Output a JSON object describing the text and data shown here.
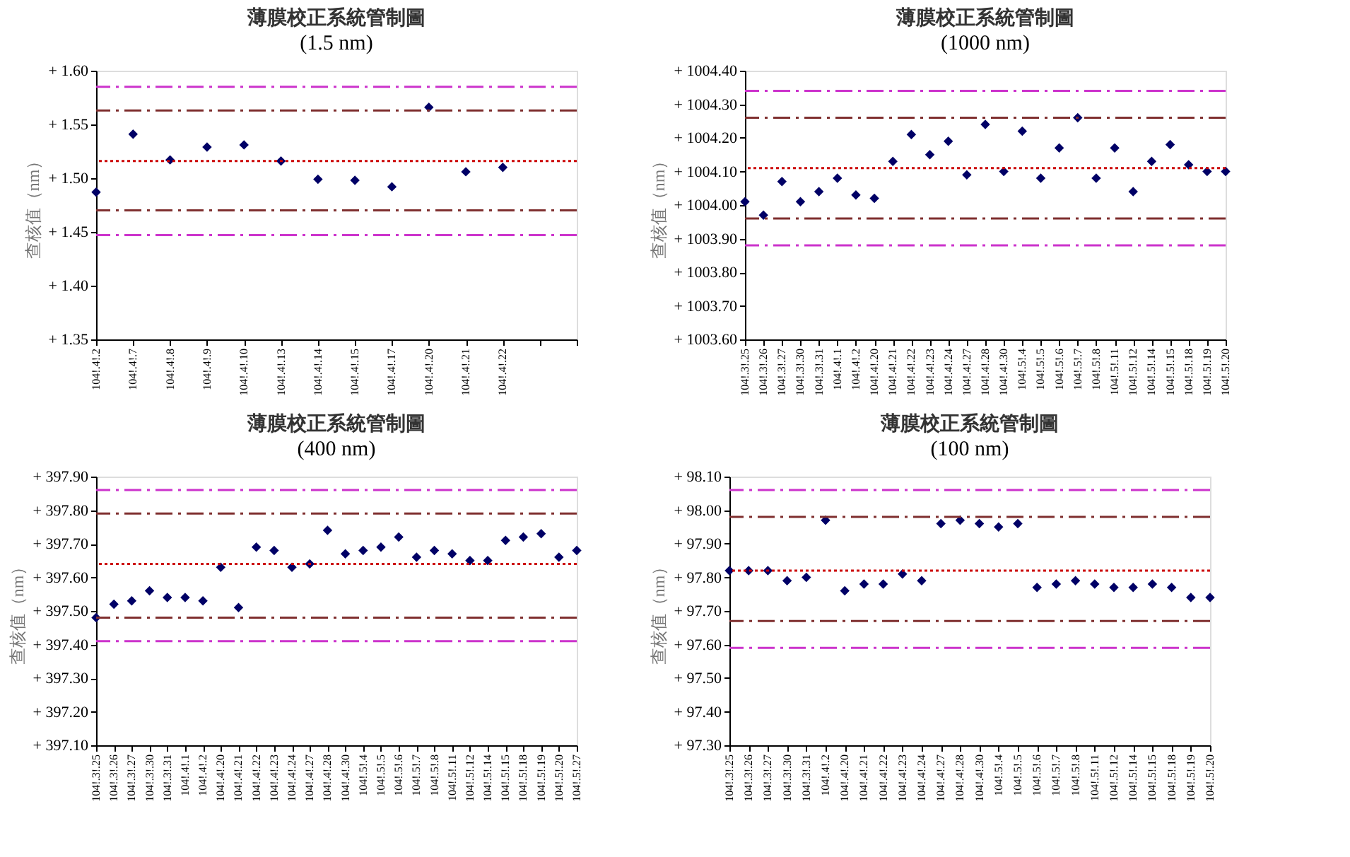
{
  "chart_data": [
    {
      "type": "scatter",
      "title": "薄膜校正系統管制圖",
      "subtitle": "(1.5 nm)",
      "ylabel": "查核值（nm）",
      "marker": "diamond",
      "grid": false,
      "categories": [
        "104!.4!.2",
        "104!.4!.7",
        "104!.4!.8",
        "104!.4!.9",
        "104!.4!.10",
        "104!.4!.13",
        "104!.4!.14",
        "104!.4!.15",
        "104!.4!.17",
        "104!.4!.20",
        "104!.4!.21",
        "104!.4!.22",
        null,
        null
      ],
      "series": [
        {
          "color": "#000066",
          "values": [
            1.487,
            1.541,
            1.517,
            1.529,
            1.531,
            1.516,
            1.499,
            1.498,
            1.492,
            1.566,
            1.506,
            1.51,
            null,
            null
          ]
        }
      ],
      "ylim": [
        1.35,
        1.6
      ],
      "yticks": [
        {
          "value": 1.35,
          "label": "+ 1.35"
        },
        {
          "value": 1.4,
          "label": "+ 1.40"
        },
        {
          "value": 1.45,
          "label": "+ 1.45"
        },
        {
          "value": 1.5,
          "label": "+ 1.50"
        },
        {
          "value": 1.55,
          "label": "+ 1.55"
        },
        {
          "value": 1.6,
          "label": "+ 1.60"
        }
      ],
      "ref_lines": [
        {
          "axis": "y",
          "value": 1.585,
          "color": "#cc33cc",
          "line_style": "dashed"
        },
        {
          "axis": "y",
          "value": 1.563,
          "color": "#7f2f2f",
          "line_style": "dashed"
        },
        {
          "axis": "y",
          "value": 1.516,
          "color": "#cc0000",
          "line_style": "dotted"
        },
        {
          "axis": "y",
          "value": 1.47,
          "color": "#7f2f2f",
          "line_style": "dashed"
        },
        {
          "axis": "y",
          "value": 1.447,
          "color": "#cc33cc",
          "line_style": "dashed"
        }
      ]
    },
    {
      "type": "scatter",
      "title": "薄膜校正系統管制圖",
      "subtitle": "(1000 nm)",
      "ylabel": "查核值（nm）",
      "marker": "diamond",
      "grid": false,
      "categories": [
        "104!.3!.25",
        "104!.3!.26",
        "104!.3!.27",
        "104!.3!.30",
        "104!.3!.31",
        "104!.4!.1",
        "104!.4!.2",
        "104!.4!.20",
        "104!.4!.21",
        "104!.4!.22",
        "104!.4!.23",
        "104!.4!.24",
        "104!.4!.27",
        "104!.4!.28",
        "104!.4!.30",
        "104!.5!.4",
        "104!.5!.5",
        "104!.5!.6",
        "104!.5!.7",
        "104!.5!.8",
        "104!.5!.11",
        "104!.5!.12",
        "104!.5!.14",
        "104!.5!.15",
        "104!.5!.18",
        "104!.5!.19",
        "104!.5!.20"
      ],
      "series": [
        {
          "color": "#000066",
          "values": [
            1004.01,
            1003.97,
            1004.07,
            1004.01,
            1004.04,
            1004.08,
            1004.03,
            1004.02,
            1004.13,
            1004.21,
            1004.15,
            1004.19,
            1004.09,
            1004.24,
            1004.1,
            1004.22,
            1004.08,
            1004.17,
            1004.26,
            1004.08,
            1004.17,
            1004.04,
            1004.13,
            1004.18,
            1004.12,
            1004.1,
            1004.1
          ]
        }
      ],
      "ylim": [
        1003.6,
        1004.4
      ],
      "yticks": [
        {
          "value": 1003.6,
          "label": "+ 1003.60"
        },
        {
          "value": 1003.7,
          "label": "+ 1003.70"
        },
        {
          "value": 1003.8,
          "label": "+ 1003.80"
        },
        {
          "value": 1003.9,
          "label": "+ 1003.90"
        },
        {
          "value": 1004.0,
          "label": "+ 1004.00"
        },
        {
          "value": 1004.1,
          "label": "+ 1004.10"
        },
        {
          "value": 1004.2,
          "label": "+ 1004.20"
        },
        {
          "value": 1004.3,
          "label": "+ 1004.30"
        },
        {
          "value": 1004.4,
          "label": "+ 1004.40"
        }
      ],
      "ref_lines": [
        {
          "axis": "y",
          "value": 1004.34,
          "color": "#cc33cc",
          "line_style": "dashed"
        },
        {
          "axis": "y",
          "value": 1004.26,
          "color": "#7f2f2f",
          "line_style": "dashed"
        },
        {
          "axis": "y",
          "value": 1004.11,
          "color": "#cc0000",
          "line_style": "dotted"
        },
        {
          "axis": "y",
          "value": 1003.96,
          "color": "#7f2f2f",
          "line_style": "dashed"
        },
        {
          "axis": "y",
          "value": 1003.88,
          "color": "#cc33cc",
          "line_style": "dashed"
        }
      ]
    },
    {
      "type": "scatter",
      "title": "薄膜校正系統管制圖",
      "subtitle": "(400 nm)",
      "ylabel": "查核值（nm）",
      "marker": "diamond",
      "grid": false,
      "categories": [
        "104!.3!.25",
        "104!.3!.26",
        "104!.3!.27",
        "104!.3!.30",
        "104!.3!.31",
        "104!.4!.1",
        "104!.4!.2",
        "104!.4!.20",
        "104!.4!.21",
        "104!.4!.22",
        "104!.4!.23",
        "104!.4!.24",
        "104!.4!.27",
        "104!.4!.28",
        "104!.4!.30",
        "104!.5!.4",
        "104!.5!.5",
        "104!.5!.6",
        "104!.5!.7",
        "104!.5!.8",
        "104!.5!.11",
        "104!.5!.12",
        "104!.5!.14",
        "104!.5!.15",
        "104!.5!.18",
        "104!.5!.19",
        "104!.5!.20",
        "104!.5!.27"
      ],
      "series": [
        {
          "color": "#000066",
          "values": [
            397.48,
            397.52,
            397.53,
            397.56,
            397.54,
            397.54,
            397.53,
            397.63,
            397.51,
            397.69,
            397.68,
            397.63,
            397.64,
            397.74,
            397.67,
            397.68,
            397.69,
            397.72,
            397.66,
            397.68,
            397.67,
            397.65,
            397.65,
            397.71,
            397.72,
            397.73,
            397.66,
            397.68
          ]
        }
      ],
      "ylim": [
        397.1,
        397.9
      ],
      "yticks": [
        {
          "value": 397.1,
          "label": "+ 397.10"
        },
        {
          "value": 397.2,
          "label": "+ 397.20"
        },
        {
          "value": 397.3,
          "label": "+ 397.30"
        },
        {
          "value": 397.4,
          "label": "+ 397.40"
        },
        {
          "value": 397.5,
          "label": "+ 397.50"
        },
        {
          "value": 397.6,
          "label": "+ 397.60"
        },
        {
          "value": 397.7,
          "label": "+ 397.70"
        },
        {
          "value": 397.8,
          "label": "+ 397.80"
        },
        {
          "value": 397.9,
          "label": "+ 397.90"
        }
      ],
      "ref_lines": [
        {
          "axis": "y",
          "value": 397.86,
          "color": "#cc33cc",
          "line_style": "dashed"
        },
        {
          "axis": "y",
          "value": 397.79,
          "color": "#7f2f2f",
          "line_style": "dashed"
        },
        {
          "axis": "y",
          "value": 397.64,
          "color": "#cc0000",
          "line_style": "dotted"
        },
        {
          "axis": "y",
          "value": 397.48,
          "color": "#7f2f2f",
          "line_style": "dashed"
        },
        {
          "axis": "y",
          "value": 397.41,
          "color": "#cc33cc",
          "line_style": "dashed"
        }
      ]
    },
    {
      "type": "scatter",
      "title": "薄膜校正系統管制圖",
      "subtitle": "(100 nm)",
      "ylabel": "查核值（nm）",
      "marker": "diamond",
      "grid": false,
      "categories": [
        "104!.3!.25",
        "104!.3!.26",
        "104!.3!.27",
        "104!.3!.30",
        "104!.3!.31",
        "104!.4!.2",
        "104!.4!.20",
        "104!.4!.21",
        "104!.4!.22",
        "104!.4!.23",
        "104!.4!.24",
        "104!.4!.27",
        "104!.4!.28",
        "104!.4!.30",
        "104!.5!.4",
        "104!.5!.5",
        "104!.5!.6",
        "104!.5!.7",
        "104!.5!.8",
        "104!.5!.11",
        "104!.5!.12",
        "104!.5!.14",
        "104!.5!.15",
        "104!.5!.18",
        "104!.5!.19",
        "104!.5!.20"
      ],
      "series": [
        {
          "color": "#000066",
          "values": [
            97.82,
            97.82,
            97.82,
            97.79,
            97.8,
            97.97,
            97.76,
            97.78,
            97.78,
            97.81,
            97.79,
            97.96,
            97.97,
            97.96,
            97.95,
            97.96,
            97.77,
            97.78,
            97.79,
            97.78,
            97.77,
            97.77,
            97.78,
            97.77,
            97.74,
            97.74
          ]
        }
      ],
      "ylim": [
        97.3,
        98.1
      ],
      "yticks": [
        {
          "value": 97.3,
          "label": "+ 97.30"
        },
        {
          "value": 97.4,
          "label": "+ 97.40"
        },
        {
          "value": 97.5,
          "label": "+ 97.50"
        },
        {
          "value": 97.6,
          "label": "+ 97.60"
        },
        {
          "value": 97.7,
          "label": "+ 97.70"
        },
        {
          "value": 97.8,
          "label": "+ 97.80"
        },
        {
          "value": 97.9,
          "label": "+ 97.90"
        },
        {
          "value": 98.0,
          "label": "+ 98.00"
        },
        {
          "value": 98.1,
          "label": "+ 98.10"
        }
      ],
      "ref_lines": [
        {
          "axis": "y",
          "value": 98.06,
          "color": "#cc33cc",
          "line_style": "dashed"
        },
        {
          "axis": "y",
          "value": 97.98,
          "color": "#7f2f2f",
          "line_style": "dashed"
        },
        {
          "axis": "y",
          "value": 97.82,
          "color": "#cc0000",
          "line_style": "dotted"
        },
        {
          "axis": "y",
          "value": 97.67,
          "color": "#7f2f2f",
          "line_style": "dashed"
        },
        {
          "axis": "y",
          "value": 97.59,
          "color": "#cc33cc",
          "line_style": "dashed"
        }
      ]
    }
  ]
}
